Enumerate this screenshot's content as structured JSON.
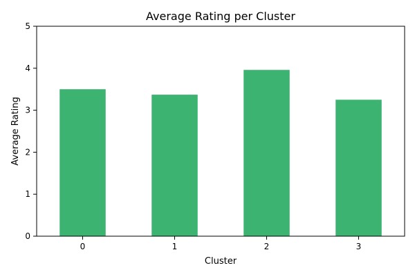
{
  "chart_data": {
    "type": "bar",
    "title": "Average Rating per Cluster",
    "xlabel": "Cluster",
    "ylabel": "Average Rating",
    "categories": [
      "0",
      "1",
      "2",
      "3"
    ],
    "values": [
      3.5,
      3.37,
      3.96,
      3.25
    ],
    "ylim": [
      0,
      5
    ],
    "yticks": [
      "0",
      "1",
      "2",
      "3",
      "4",
      "5"
    ],
    "grid": false,
    "legend": "none",
    "bar_color": "#3cb371"
  }
}
